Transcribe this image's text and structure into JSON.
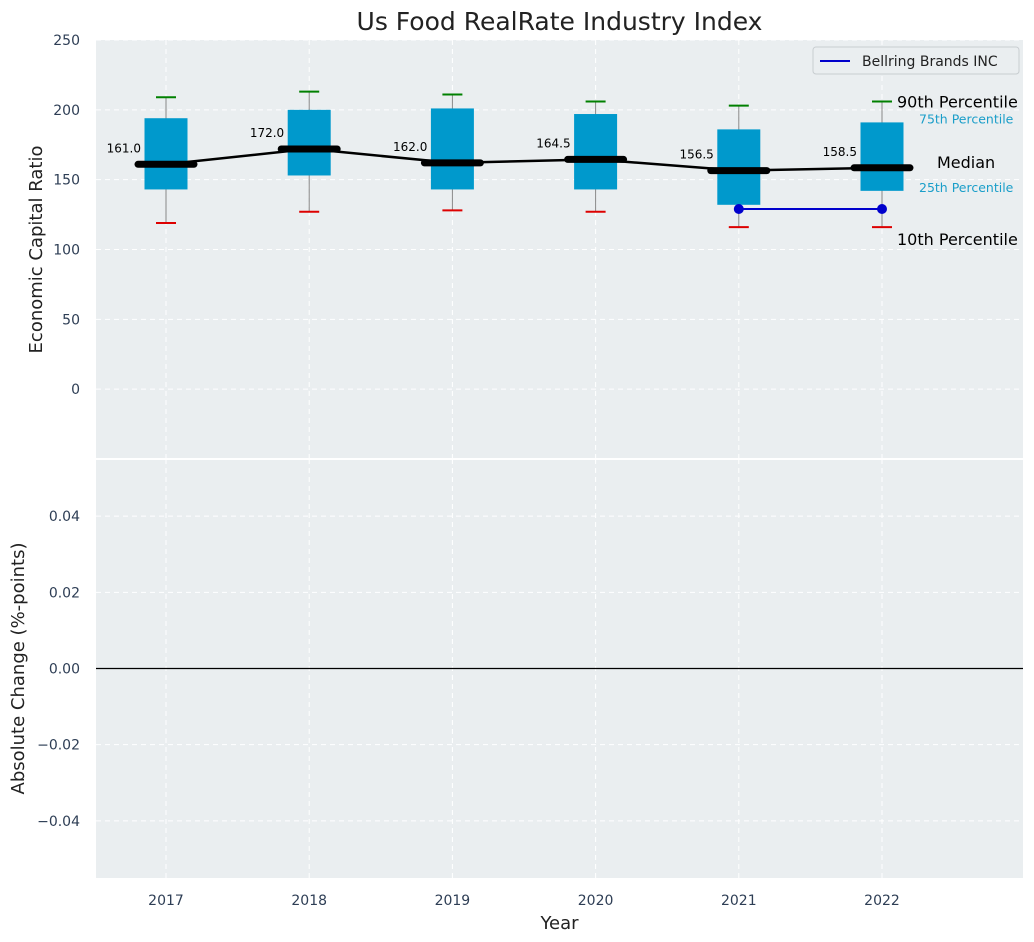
{
  "chart_data": [
    {
      "type": "box",
      "title": "Us Food RealRate Industry Index",
      "ylabel": "Economic Capital Ratio",
      "xlabel": "",
      "ylim": [
        -50,
        250
      ],
      "yticks": [
        0,
        50,
        100,
        150,
        200,
        250
      ],
      "grid": true,
      "categories": [
        "2017",
        "2018",
        "2019",
        "2020",
        "2021",
        "2022"
      ],
      "p10": [
        119,
        127,
        128,
        127,
        116,
        116
      ],
      "p25": [
        143,
        153,
        143,
        143,
        132,
        142
      ],
      "median": [
        161.0,
        172.0,
        162.0,
        164.5,
        156.5,
        158.5
      ],
      "median_labels": [
        "161.0",
        "172.0",
        "162.0",
        "164.5",
        "156.5",
        "158.5"
      ],
      "p75": [
        194,
        200,
        201,
        197,
        186,
        191
      ],
      "p90": [
        209,
        213,
        211,
        206,
        203,
        206
      ],
      "series": [
        {
          "name": "Bellring Brands INC",
          "x": [
            "2021",
            "2022"
          ],
          "values": [
            129,
            129
          ],
          "color": "#0000cc"
        }
      ],
      "legend": {
        "position": "top-right",
        "entries": [
          "Bellring Brands INC"
        ]
      },
      "annotations": {
        "p90": "90th Percentile",
        "p75": "75th Percentile",
        "median": "Median",
        "p25": "25th Percentile",
        "p10": "10th Percentile"
      },
      "colors": {
        "box": "#0099cc",
        "whisker_high": "#008000",
        "whisker_low": "#dd0000",
        "median": "#000000",
        "background": "#eaeef0"
      }
    },
    {
      "type": "line",
      "ylabel": "Absolute Change (%-points)",
      "xlabel": "Year",
      "ylim": [
        -0.055,
        0.055
      ],
      "yticks": [
        -0.04,
        -0.02,
        0.0,
        0.02,
        0.04
      ],
      "ytick_labels": [
        "−0.04",
        "−0.02",
        "0.00",
        "0.02",
        "0.04"
      ],
      "grid": true,
      "categories": [
        "2017",
        "2018",
        "2019",
        "2020",
        "2021",
        "2022"
      ],
      "series": []
    }
  ]
}
